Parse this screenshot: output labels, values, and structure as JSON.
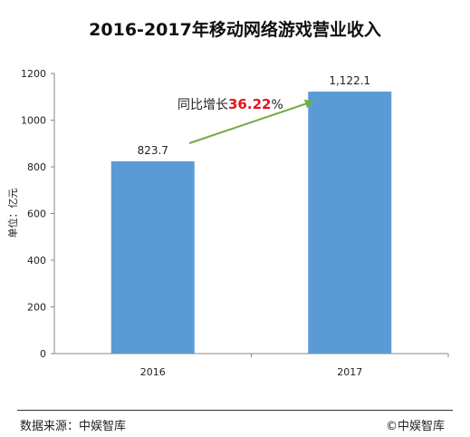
{
  "chart_data": {
    "type": "bar",
    "title": "2016-2017年移动网络游戏营业收入",
    "categories": [
      "2016",
      "2017"
    ],
    "values": [
      823.7,
      1122.1
    ],
    "value_labels": [
      "823.7",
      "1,122.1"
    ],
    "ylabel": "单位：亿元",
    "ylim": [
      0,
      1200
    ],
    "yticks": [
      0,
      200,
      400,
      600,
      800,
      1000,
      1200
    ],
    "bar_color": "#5b9bd5",
    "grid": false,
    "annotation": {
      "prefix": "同比增长",
      "value": "36.22",
      "suffix": "%",
      "highlight_color": "#e4141b",
      "arrow_color": "#70ad47"
    }
  },
  "footer": {
    "source": "数据来源：中娱智库",
    "copyright": "©中娱智库"
  }
}
